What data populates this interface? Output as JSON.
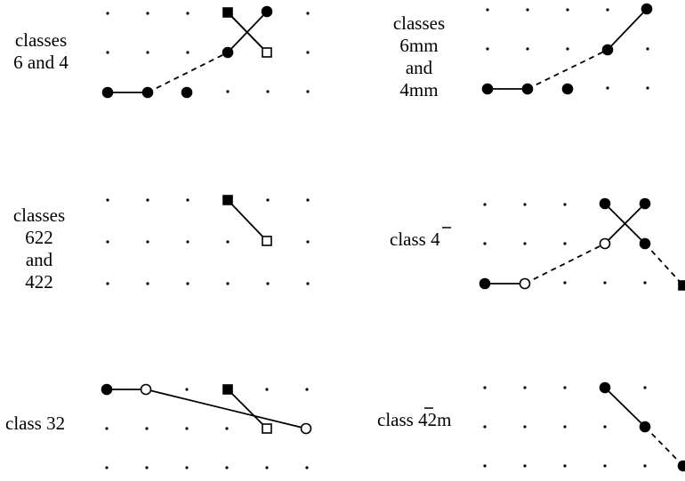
{
  "panels": [
    {
      "id": "p1",
      "label_lines": [
        "classes",
        "6 and 4"
      ],
      "overbar": null,
      "shapes": [
        {
          "kind": "filled_circle"
        },
        {
          "kind": "filled_circle"
        },
        {
          "kind": "filled_circle"
        },
        {
          "kind": "filled_square"
        },
        {
          "kind": "filled_circle"
        },
        {
          "kind": "filled_circle"
        },
        {
          "kind": "open_square"
        }
      ],
      "segments": [
        {
          "style": "solid"
        },
        {
          "style": "dashed"
        },
        {
          "style": "solid"
        },
        {
          "style": "solid"
        },
        {
          "style": "solid"
        }
      ]
    },
    {
      "id": "p2",
      "label_lines": [
        "classes",
        "6mm",
        "and",
        "4mm"
      ],
      "overbar": null,
      "shapes": [
        {
          "kind": "filled_circle"
        },
        {
          "kind": "filled_circle"
        },
        {
          "kind": "filled_circle"
        },
        {
          "kind": "filled_circle"
        },
        {
          "kind": "filled_circle"
        }
      ],
      "segments": [
        {
          "style": "solid"
        },
        {
          "style": "dashed"
        },
        {
          "style": "solid"
        }
      ]
    },
    {
      "id": "p3",
      "label_lines": [
        "classes",
        "622",
        "and",
        "422"
      ],
      "overbar": null,
      "shapes": [
        {
          "kind": "filled_square"
        },
        {
          "kind": "open_square"
        }
      ],
      "segments": [
        {
          "style": "solid"
        }
      ]
    },
    {
      "id": "p4",
      "label_lines": [
        "class 4"
      ],
      "overbar": "4",
      "shapes": [
        {
          "kind": "filled_circle"
        },
        {
          "kind": "open_circle"
        },
        {
          "kind": "open_circle"
        },
        {
          "kind": "filled_circle"
        },
        {
          "kind": "filled_circle"
        },
        {
          "kind": "filled_circle"
        },
        {
          "kind": "filled_square"
        }
      ],
      "segments": [
        {
          "style": "solid"
        },
        {
          "style": "dashed"
        },
        {
          "style": "solid"
        },
        {
          "style": "solid"
        },
        {
          "style": "dashed"
        }
      ]
    },
    {
      "id": "p5",
      "label_lines": [
        "class 32"
      ],
      "overbar": null,
      "shapes": [
        {
          "kind": "filled_circle"
        },
        {
          "kind": "open_circle"
        },
        {
          "kind": "open_circle"
        },
        {
          "kind": "filled_square"
        },
        {
          "kind": "open_square"
        }
      ],
      "segments": [
        {
          "style": "solid"
        },
        {
          "style": "solid"
        },
        {
          "style": "solid"
        }
      ]
    },
    {
      "id": "p6",
      "label_lines": [
        "class 42m"
      ],
      "overbar": "4",
      "shapes": [
        {
          "kind": "filled_circle"
        },
        {
          "kind": "filled_circle"
        },
        {
          "kind": "filled_circle"
        }
      ],
      "segments": [
        {
          "style": "solid"
        },
        {
          "style": "dashed"
        }
      ]
    }
  ]
}
